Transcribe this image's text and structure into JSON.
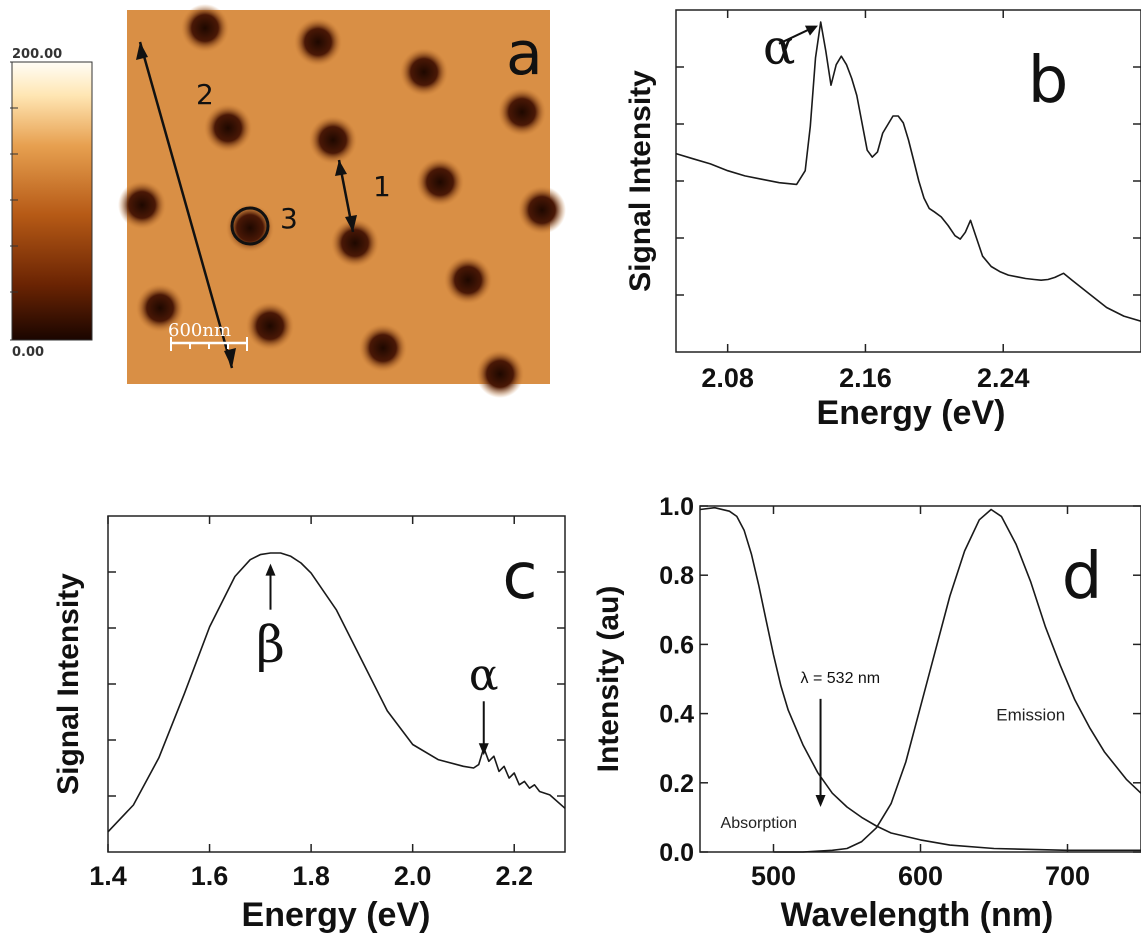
{
  "colorbar": {
    "max_label": "200.00",
    "min_label": "0.00",
    "colors": [
      "#1a0500",
      "#6b2403",
      "#b65a16",
      "#e7a050",
      "#ffe6b3",
      "#fffdf6"
    ]
  },
  "afm": {
    "panel_letter": "a",
    "labels": [
      "1",
      "2",
      "3"
    ],
    "scale_bar_label": "600nm",
    "background_color": "#d98f45",
    "pit_color": "#2a0d02"
  },
  "chart_data": [
    {
      "panel": "b",
      "type": "line",
      "panel_letter": "b",
      "xlabel": "Energy (eV)",
      "ylabel": "Signal Intensity",
      "xlim": [
        2.05,
        2.32
      ],
      "ylim": [
        0,
        1
      ],
      "x_ticks": [
        2.08,
        2.16,
        2.24
      ],
      "x_tick_labels": [
        "2.08",
        "2.16",
        "2.24"
      ],
      "y_ticks_labeled": false,
      "annotations": [
        {
          "text": "α",
          "x": 2.133,
          "y": 0.96
        }
      ],
      "series": [
        {
          "x": [
            2.05,
            2.06,
            2.07,
            2.08,
            2.09,
            2.1,
            2.11,
            2.12,
            2.125,
            2.128,
            2.131,
            2.134,
            2.137,
            2.14,
            2.143,
            2.146,
            2.149,
            2.152,
            2.155,
            2.158,
            2.161,
            2.164,
            2.167,
            2.17,
            2.173,
            2.176,
            2.179,
            2.182,
            2.185,
            2.188,
            2.191,
            2.194,
            2.197,
            2.2,
            2.204,
            2.208,
            2.212,
            2.215,
            2.218,
            2.221,
            2.224,
            2.228,
            2.233,
            2.238,
            2.243,
            2.248,
            2.253,
            2.258,
            2.262,
            2.266,
            2.27,
            2.275,
            2.28,
            2.29,
            2.3,
            2.31,
            2.32
          ],
          "y": [
            0.58,
            0.565,
            0.55,
            0.53,
            0.515,
            0.505,
            0.495,
            0.49,
            0.53,
            0.66,
            0.86,
            0.965,
            0.88,
            0.78,
            0.84,
            0.865,
            0.84,
            0.8,
            0.75,
            0.67,
            0.59,
            0.57,
            0.585,
            0.64,
            0.665,
            0.69,
            0.69,
            0.67,
            0.62,
            0.56,
            0.5,
            0.45,
            0.42,
            0.41,
            0.395,
            0.37,
            0.34,
            0.33,
            0.35,
            0.385,
            0.34,
            0.28,
            0.25,
            0.235,
            0.225,
            0.22,
            0.215,
            0.212,
            0.21,
            0.212,
            0.218,
            0.23,
            0.21,
            0.17,
            0.13,
            0.105,
            0.09
          ]
        }
      ]
    },
    {
      "panel": "c",
      "type": "line",
      "panel_letter": "c",
      "xlabel": "Energy (eV)",
      "ylabel": "Signal Intensity",
      "xlim": [
        1.4,
        2.3
      ],
      "ylim": [
        0,
        1
      ],
      "x_ticks": [
        1.4,
        1.6,
        1.8,
        2.0,
        2.2
      ],
      "x_tick_labels": [
        "1.4",
        "1.6",
        "1.8",
        "2.0",
        "2.2"
      ],
      "y_ticks_labeled": false,
      "annotations": [
        {
          "text": "β",
          "x": 1.72,
          "y": 0.87
        },
        {
          "text": "α",
          "x": 2.14,
          "y": 0.27
        }
      ],
      "series": [
        {
          "x": [
            1.4,
            1.45,
            1.5,
            1.55,
            1.6,
            1.65,
            1.68,
            1.7,
            1.72,
            1.74,
            1.76,
            1.78,
            1.8,
            1.85,
            1.9,
            1.95,
            2.0,
            2.05,
            2.1,
            2.12,
            2.13,
            2.14,
            2.15,
            2.16,
            2.17,
            2.18,
            2.19,
            2.2,
            2.21,
            2.22,
            2.23,
            2.24,
            2.25,
            2.27,
            2.3
          ],
          "y": [
            0.06,
            0.14,
            0.28,
            0.47,
            0.67,
            0.82,
            0.87,
            0.885,
            0.89,
            0.89,
            0.88,
            0.86,
            0.83,
            0.72,
            0.57,
            0.42,
            0.32,
            0.275,
            0.255,
            0.25,
            0.26,
            0.31,
            0.27,
            0.285,
            0.24,
            0.255,
            0.22,
            0.235,
            0.2,
            0.21,
            0.19,
            0.2,
            0.18,
            0.17,
            0.13
          ]
        }
      ]
    },
    {
      "panel": "d",
      "type": "line",
      "panel_letter": "d",
      "xlabel": "Wavelength (nm)",
      "ylabel": "Intensity (au)",
      "xlim": [
        450,
        750
      ],
      "ylim": [
        0,
        1
      ],
      "x_ticks": [
        500,
        600,
        700
      ],
      "x_tick_labels": [
        "500",
        "600",
        "700"
      ],
      "y_ticks": [
        0.0,
        0.2,
        0.4,
        0.6,
        0.8,
        1.0
      ],
      "y_tick_labels": [
        "0.0",
        "0.2",
        "0.4",
        "0.6",
        "0.8",
        "1.0"
      ],
      "annotations": [
        {
          "text": "λ = 532 nm",
          "x": 532,
          "y": 0.46
        },
        {
          "text": "Emission",
          "x": 675,
          "y": 0.38
        },
        {
          "text": "Absorption",
          "x": 490,
          "y": 0.07
        }
      ],
      "series": [
        {
          "name": "Absorption",
          "x": [
            450,
            460,
            470,
            475,
            480,
            485,
            490,
            495,
            500,
            505,
            510,
            520,
            530,
            540,
            550,
            560,
            570,
            580,
            600,
            620,
            650,
            700,
            750
          ],
          "y": [
            0.99,
            0.995,
            0.985,
            0.97,
            0.93,
            0.86,
            0.77,
            0.67,
            0.57,
            0.48,
            0.41,
            0.31,
            0.23,
            0.17,
            0.13,
            0.1,
            0.075,
            0.055,
            0.035,
            0.02,
            0.01,
            0.005,
            0.005
          ]
        },
        {
          "name": "Emission",
          "x": [
            500,
            520,
            540,
            550,
            560,
            570,
            580,
            590,
            600,
            610,
            620,
            630,
            640,
            648,
            655,
            665,
            675,
            685,
            695,
            705,
            715,
            725,
            740,
            750
          ],
          "y": [
            0.0,
            0.0,
            0.005,
            0.01,
            0.03,
            0.07,
            0.14,
            0.26,
            0.42,
            0.58,
            0.74,
            0.87,
            0.96,
            0.99,
            0.97,
            0.89,
            0.78,
            0.65,
            0.54,
            0.44,
            0.36,
            0.29,
            0.21,
            0.17
          ]
        }
      ]
    }
  ]
}
